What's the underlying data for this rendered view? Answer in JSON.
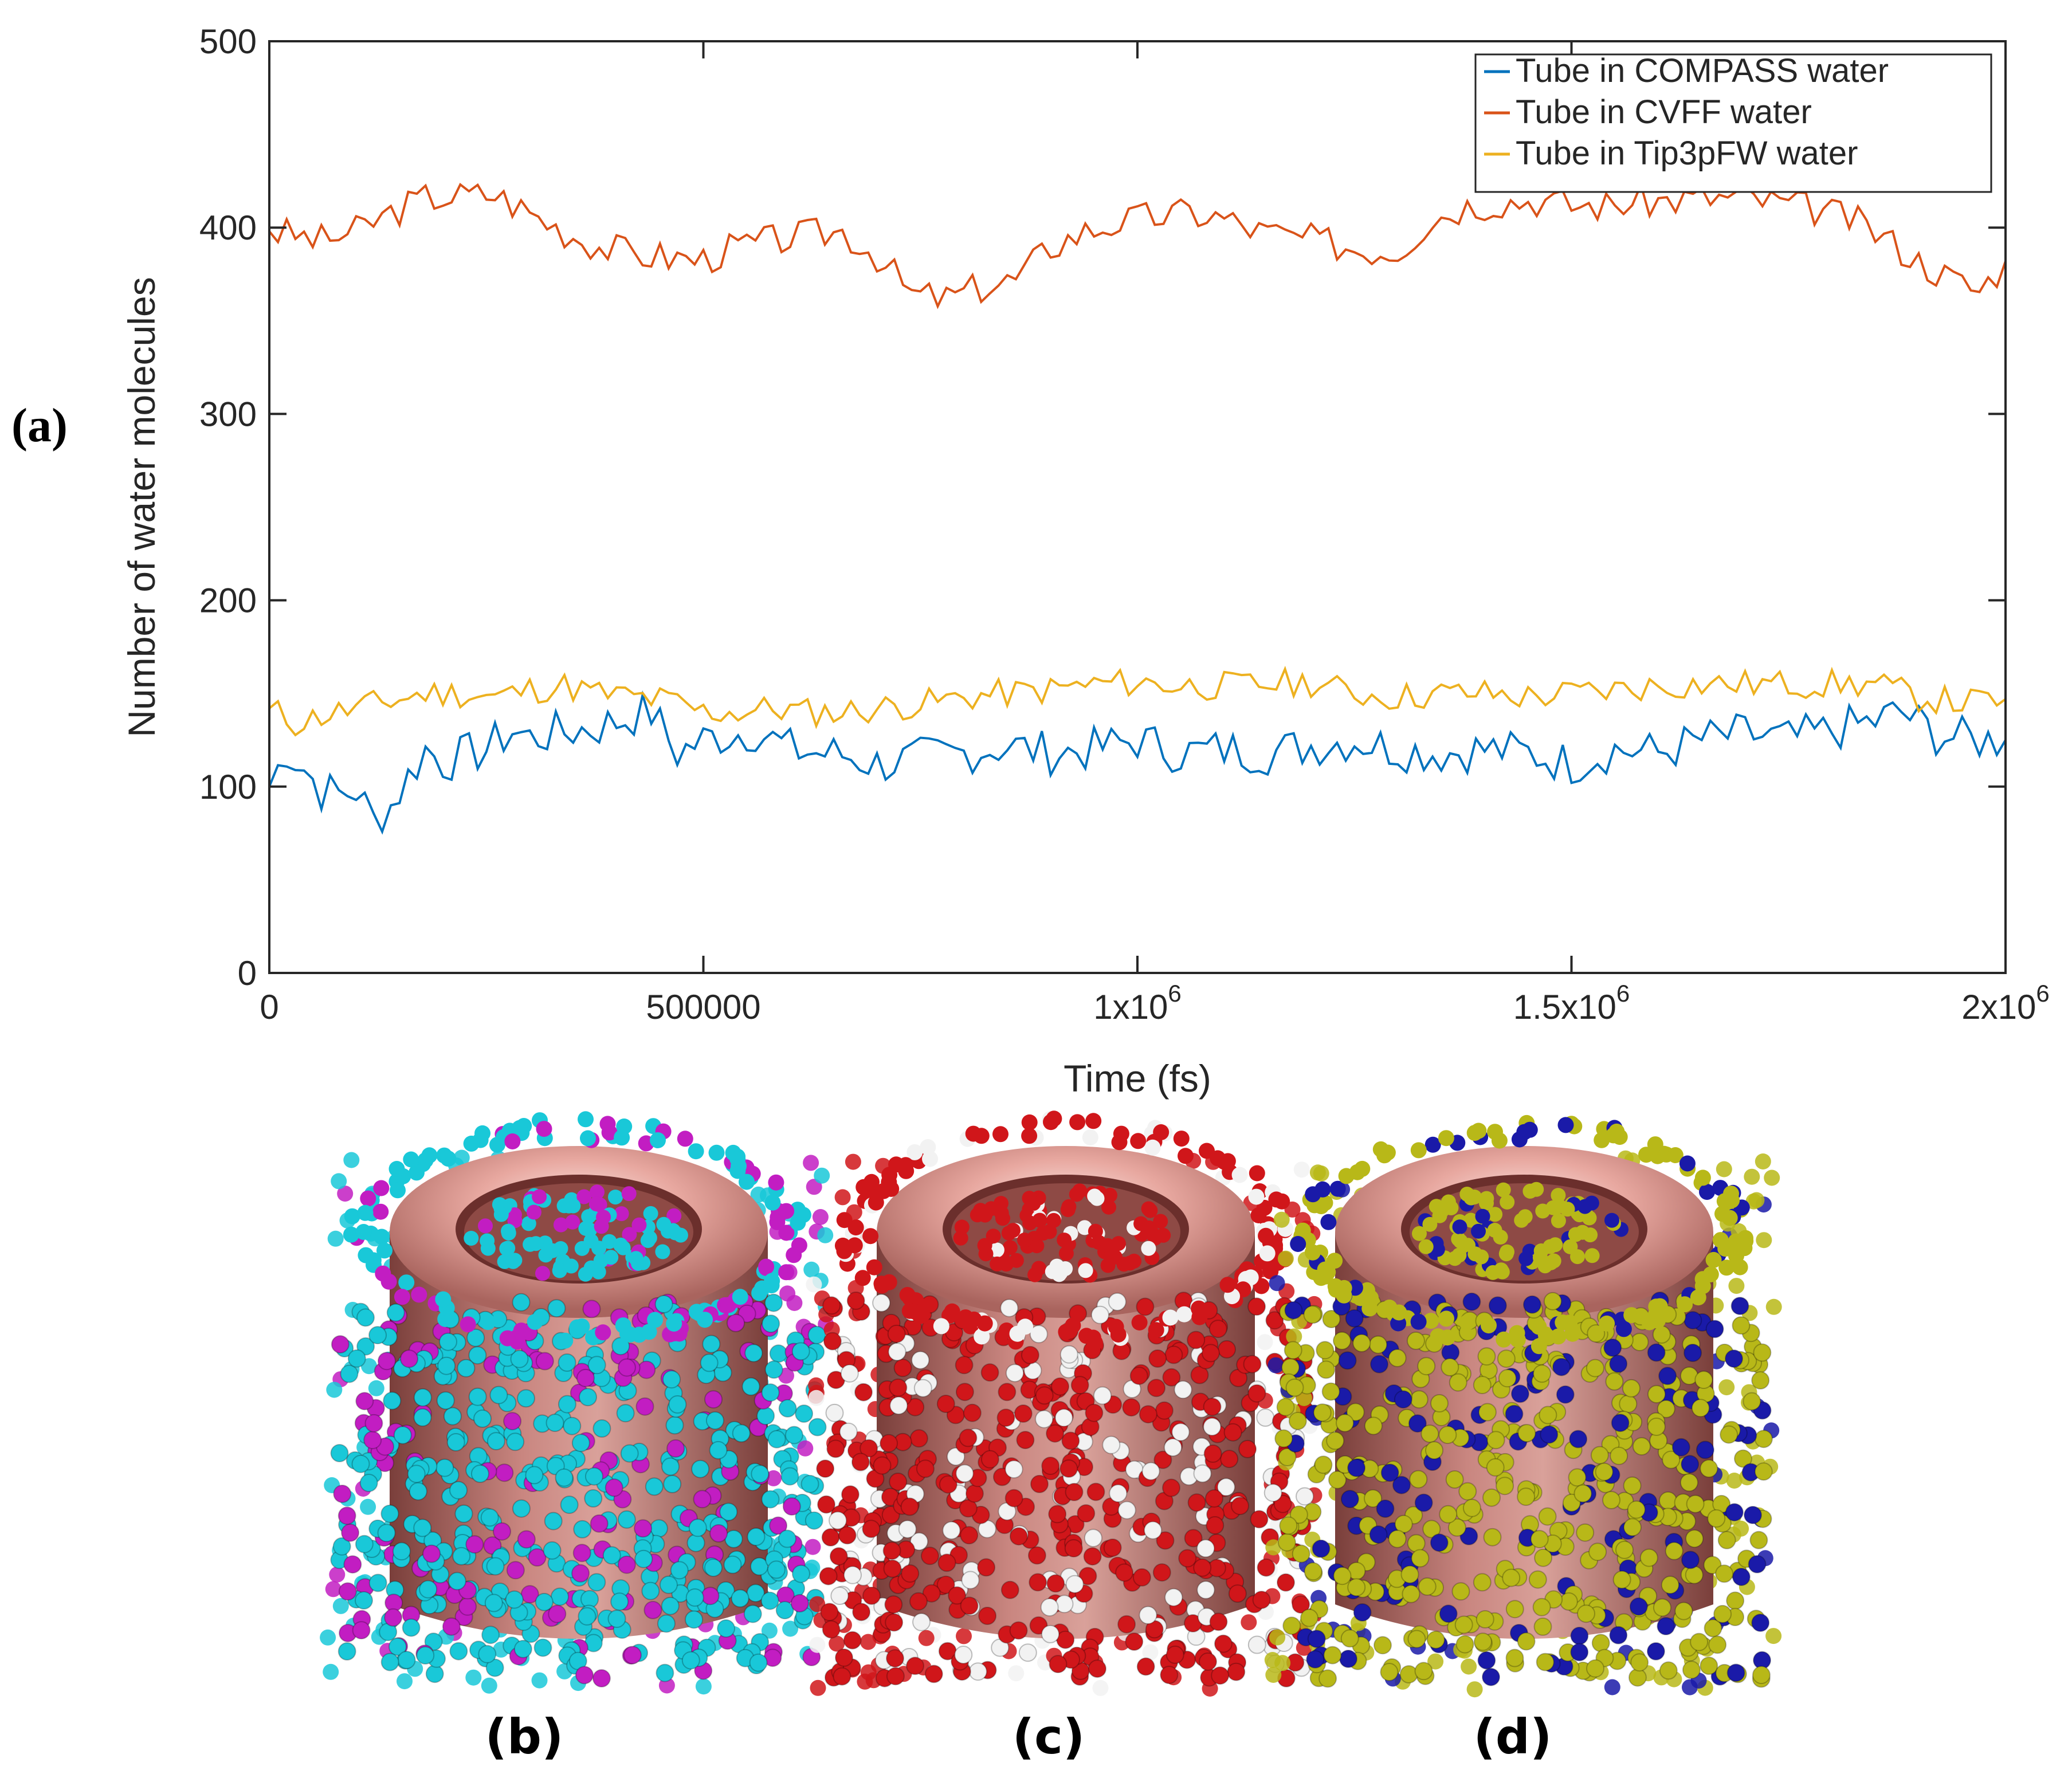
{
  "panel_labels": {
    "a": "(a)",
    "b": "(b)",
    "c": "(c)",
    "d": "(d)"
  },
  "chart_data": {
    "type": "line",
    "title": "",
    "xlabel": "Time (fs)",
    "ylabel": "Number of water molecules",
    "xlim": [
      0,
      2000000
    ],
    "ylim": [
      0,
      500
    ],
    "x_ticks": [
      {
        "value": 0,
        "base": "0",
        "exp": ""
      },
      {
        "value": 500000,
        "base": "500000",
        "exp": ""
      },
      {
        "value": 1000000,
        "base": "1x10",
        "exp": "6"
      },
      {
        "value": 1500000,
        "base": "1.5x10",
        "exp": "6"
      },
      {
        "value": 2000000,
        "base": "2x10",
        "exp": "6"
      }
    ],
    "y_ticks": [
      0,
      100,
      200,
      300,
      400,
      500
    ],
    "grid": false,
    "legend_position": "top-right",
    "series": [
      {
        "name": "Tube in COMPASS water",
        "color": "#0072BD",
        "anchors": [
          [
            0,
            100
          ],
          [
            20000,
            120
          ],
          [
            40000,
            110
          ],
          [
            60000,
            98
          ],
          [
            80000,
            96
          ],
          [
            100000,
            98
          ],
          [
            120000,
            82
          ],
          [
            140000,
            90
          ],
          [
            160000,
            105
          ],
          [
            180000,
            120
          ],
          [
            200000,
            113
          ],
          [
            220000,
            116
          ],
          [
            250000,
            120
          ],
          [
            280000,
            130
          ],
          [
            300000,
            126
          ],
          [
            320000,
            128
          ],
          [
            350000,
            130
          ],
          [
            380000,
            132
          ],
          [
            400000,
            135
          ],
          [
            420000,
            138
          ],
          [
            440000,
            140
          ],
          [
            470000,
            118
          ],
          [
            500000,
            125
          ],
          [
            530000,
            128
          ],
          [
            560000,
            130
          ],
          [
            600000,
            120
          ],
          [
            630000,
            118
          ],
          [
            660000,
            117
          ],
          [
            700000,
            112
          ],
          [
            750000,
            115
          ],
          [
            800000,
            118
          ],
          [
            850000,
            122
          ],
          [
            900000,
            118
          ],
          [
            950000,
            120
          ],
          [
            1000000,
            125
          ],
          [
            1050000,
            118
          ],
          [
            1100000,
            120
          ],
          [
            1150000,
            118
          ],
          [
            1200000,
            122
          ],
          [
            1250000,
            125
          ],
          [
            1300000,
            120
          ],
          [
            1350000,
            118
          ],
          [
            1400000,
            120
          ],
          [
            1450000,
            118
          ],
          [
            1500000,
            112
          ],
          [
            1550000,
            120
          ],
          [
            1600000,
            118
          ],
          [
            1650000,
            125
          ],
          [
            1700000,
            128
          ],
          [
            1750000,
            125
          ],
          [
            1800000,
            130
          ],
          [
            1850000,
            135
          ],
          [
            1880000,
            140
          ],
          [
            1920000,
            128
          ],
          [
            1960000,
            125
          ],
          [
            2000000,
            125
          ]
        ],
        "noise": 12,
        "seed": 7
      },
      {
        "name": "Tube in CVFF water",
        "color": "#D95319",
        "anchors": [
          [
            0,
            398
          ],
          [
            30000,
            396
          ],
          [
            60000,
            393
          ],
          [
            100000,
            398
          ],
          [
            140000,
            408
          ],
          [
            180000,
            416
          ],
          [
            220000,
            417
          ],
          [
            260000,
            418
          ],
          [
            300000,
            408
          ],
          [
            340000,
            398
          ],
          [
            380000,
            390
          ],
          [
            420000,
            386
          ],
          [
            460000,
            384
          ],
          [
            500000,
            383
          ],
          [
            540000,
            390
          ],
          [
            580000,
            393
          ],
          [
            620000,
            396
          ],
          [
            660000,
            398
          ],
          [
            700000,
            385
          ],
          [
            740000,
            364
          ],
          [
            780000,
            362
          ],
          [
            820000,
            368
          ],
          [
            860000,
            372
          ],
          [
            900000,
            390
          ],
          [
            940000,
            398
          ],
          [
            980000,
            403
          ],
          [
            1020000,
            406
          ],
          [
            1060000,
            408
          ],
          [
            1100000,
            405
          ],
          [
            1140000,
            398
          ],
          [
            1180000,
            395
          ],
          [
            1220000,
            392
          ],
          [
            1260000,
            388
          ],
          [
            1300000,
            388
          ],
          [
            1340000,
            405
          ],
          [
            1380000,
            412
          ],
          [
            1420000,
            414
          ],
          [
            1460000,
            415
          ],
          [
            1500000,
            412
          ],
          [
            1540000,
            412
          ],
          [
            1580000,
            414
          ],
          [
            1620000,
            415
          ],
          [
            1660000,
            416
          ],
          [
            1700000,
            416
          ],
          [
            1740000,
            413
          ],
          [
            1780000,
            410
          ],
          [
            1820000,
            405
          ],
          [
            1860000,
            395
          ],
          [
            1900000,
            382
          ],
          [
            1940000,
            372
          ],
          [
            1970000,
            366
          ],
          [
            2000000,
            382
          ]
        ],
        "noise": 9,
        "seed": 3
      },
      {
        "name": "Tube in Tip3pFW water",
        "color": "#EDB120",
        "anchors": [
          [
            0,
            142
          ],
          [
            30000,
            134
          ],
          [
            60000,
            138
          ],
          [
            100000,
            142
          ],
          [
            140000,
            146
          ],
          [
            180000,
            150
          ],
          [
            220000,
            150
          ],
          [
            260000,
            148
          ],
          [
            300000,
            152
          ],
          [
            340000,
            154
          ],
          [
            380000,
            150
          ],
          [
            420000,
            148
          ],
          [
            460000,
            146
          ],
          [
            500000,
            140
          ],
          [
            540000,
            140
          ],
          [
            580000,
            142
          ],
          [
            620000,
            140
          ],
          [
            660000,
            140
          ],
          [
            700000,
            142
          ],
          [
            760000,
            145
          ],
          [
            800000,
            148
          ],
          [
            850000,
            150
          ],
          [
            900000,
            152
          ],
          [
            950000,
            155
          ],
          [
            1000000,
            156
          ],
          [
            1050000,
            154
          ],
          [
            1100000,
            154
          ],
          [
            1150000,
            155
          ],
          [
            1200000,
            156
          ],
          [
            1250000,
            150
          ],
          [
            1300000,
            148
          ],
          [
            1350000,
            150
          ],
          [
            1400000,
            150
          ],
          [
            1450000,
            148
          ],
          [
            1500000,
            150
          ],
          [
            1550000,
            152
          ],
          [
            1600000,
            154
          ],
          [
            1650000,
            155
          ],
          [
            1700000,
            155
          ],
          [
            1750000,
            155
          ],
          [
            1800000,
            155
          ],
          [
            1850000,
            155
          ],
          [
            1900000,
            148
          ],
          [
            1950000,
            145
          ],
          [
            2000000,
            147
          ]
        ],
        "noise": 8,
        "seed": 11
      }
    ]
  }
}
